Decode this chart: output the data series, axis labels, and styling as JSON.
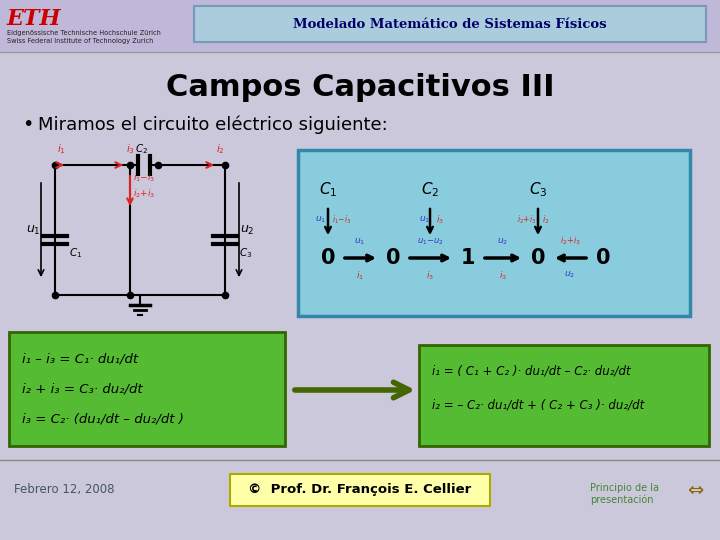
{
  "bg_color": "#ccc8dc",
  "header_bg": "#c0b8d8",
  "title_box_color": "#aaccdd",
  "title_box_edge": "#7799bb",
  "title_text": "Modelado Matemático de Sistemas Físicos",
  "eth_text": "ETH",
  "eth_sub1": "Eidgenössische Technische Hochschule Zürich",
  "eth_sub2": "Swiss Federal Institute of Technology Zurich",
  "slide_title": "Campos Capacitivos III",
  "bullet_text": "Miramos el circuito eléctrico siguiente:",
  "footer_date": "Febrero 12, 2008",
  "footer_copy": "©  Prof. Dr. François E. Cellier",
  "footer_right": "Principio de la\npresentación",
  "eq_box1_line1": "i₁ – i₃ = C₁· du₁/dt",
  "eq_box1_line2": "i₂ + i₃ = C₃· du₂/dt",
  "eq_box1_line3": "i₃ = C₂· (du₁/dt – du₂/dt )",
  "eq_box2_line1": "i₁ = ( C₁ + C₂ )· du₁/dt – C₂· du₂/dt",
  "eq_box2_line2": "i₂ = – C₂· du₁/dt + ( C₂ + C₃ )· du₂/dt",
  "green_box_color": "#55bb33",
  "green_box_edge": "#336600",
  "cyan_box_color": "#88ccdd",
  "cyan_box_edge": "#3388aa",
  "footer_copy_bg": "#ffffaa",
  "footer_copy_edge": "#aaaa00",
  "red_color": "#dd2222",
  "blue_color": "#3333cc",
  "dark_blue": "#000066"
}
